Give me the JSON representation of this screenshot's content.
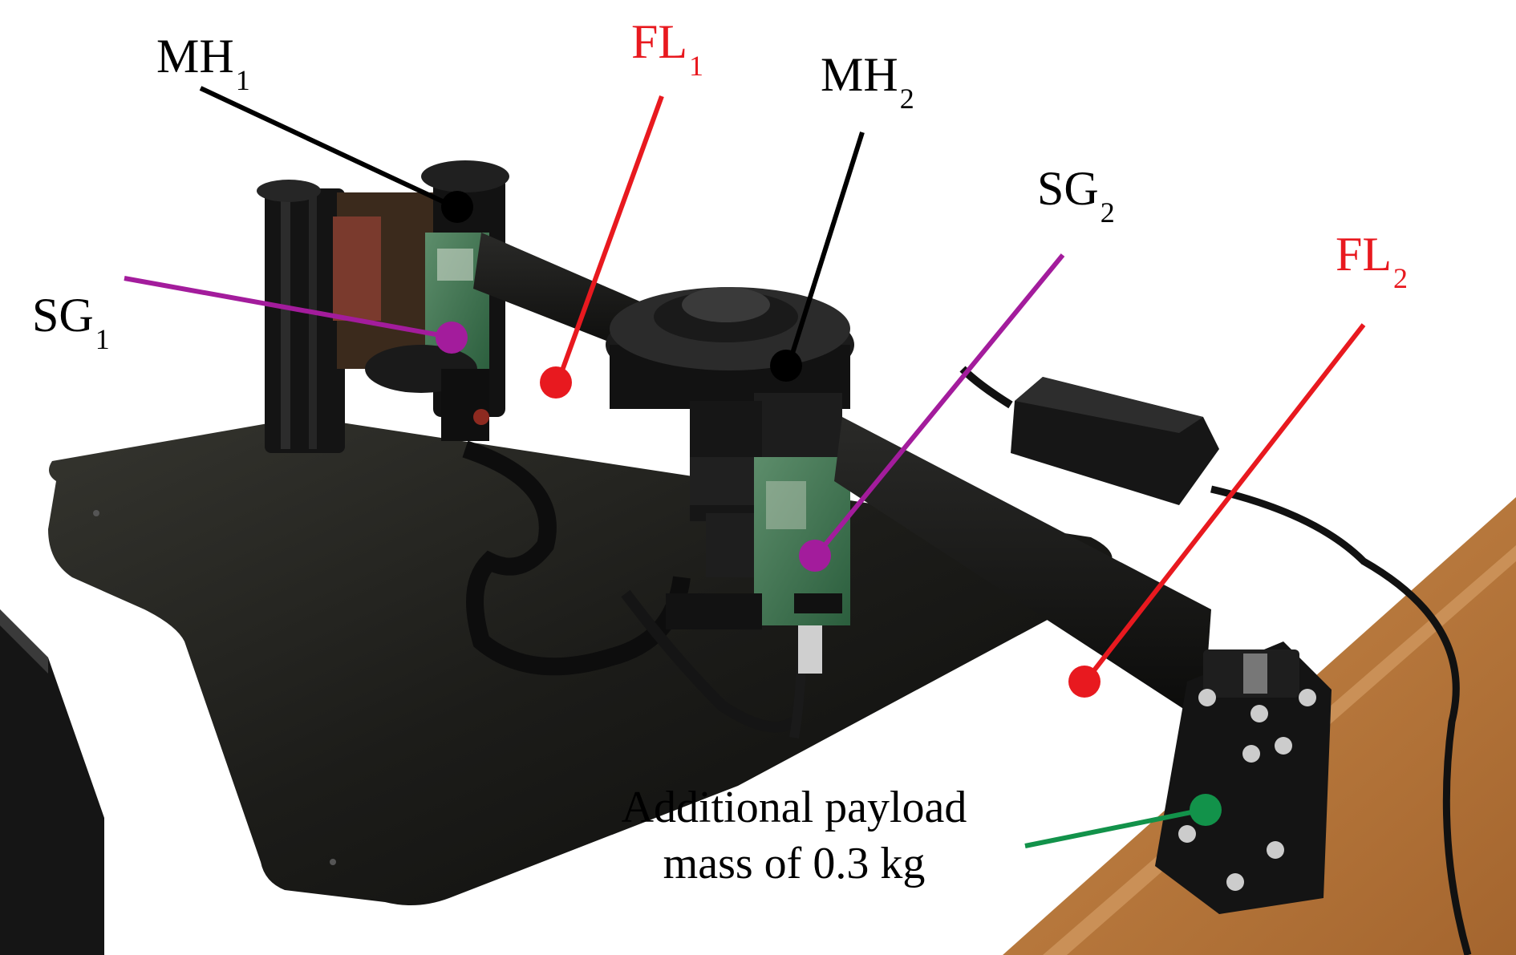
{
  "labels": {
    "mh1": {
      "base": "MH",
      "sub": "1"
    },
    "fl1": {
      "base": "FL",
      "sub": "1"
    },
    "mh2": {
      "base": "MH",
      "sub": "2"
    },
    "sg2": {
      "base": "SG",
      "sub": "2"
    },
    "fl2": {
      "base": "FL",
      "sub": "2"
    },
    "sg1": {
      "base": "SG",
      "sub": "1"
    },
    "payload": {
      "line1": "Additional payload",
      "line2": "mass of 0.3 kg"
    }
  },
  "colors": {
    "mh": "#000000",
    "fl": "#e8191f",
    "sg": "#a31c9c",
    "payload": "#12924a"
  }
}
